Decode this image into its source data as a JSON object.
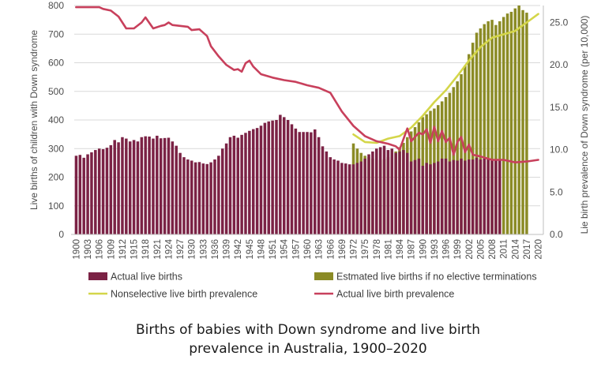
{
  "chart_data": {
    "type": "bar",
    "title": "Births of babies with Down syndrome and live birth prevalence in Australia, 1900–2020",
    "title_line1": "Births of babies with Down syndrome and live birth",
    "title_line2": "prevalence in Australia, 1900–2020",
    "ylabel_left": "Live births of children with Down syndrome",
    "ylabel_right": "Lie birth prevalence of Down syndrome (per 10,000)",
    "ylim_left": [
      0,
      800
    ],
    "ylim_right": [
      0,
      27
    ],
    "yticks_left": [
      "0",
      "100",
      "200",
      "300",
      "400",
      "500",
      "600",
      "700",
      "800"
    ],
    "yticks_right": [
      "0.0",
      "5.0",
      "10.0",
      "15.0",
      "20.0",
      "25.0"
    ],
    "xlim": [
      1900,
      2020
    ],
    "xticks": [
      "1900",
      "1903",
      "1906",
      "1909",
      "1912",
      "1915",
      "1918",
      "1921",
      "1924",
      "1927",
      "1930",
      "1933",
      "1936",
      "1939",
      "1942",
      "1945",
      "1948",
      "1951",
      "1954",
      "1957",
      "1960",
      "1963",
      "1966",
      "1969",
      "1972",
      "1975",
      "1978",
      "1981",
      "1984",
      "1987",
      "1990",
      "1993",
      "1996",
      "1999",
      "2002",
      "2005",
      "2008",
      "2011",
      "2014",
      "2017",
      "2020"
    ],
    "grid": "horizontal",
    "legend_position": "bottom",
    "colors": {
      "actual_births": "#7b2245",
      "estimated_births": "#8b8b26",
      "nonselective_prevalence": "#d4d64a",
      "actual_prevalence": "#c8405c",
      "grid": "#d9d9d9",
      "axis": "#bfbfbf"
    },
    "series": [
      {
        "name": "Actual live births",
        "kind": "bar",
        "axis": "left",
        "x_start": 1900,
        "values": [
          275,
          278,
          268,
          280,
          287,
          295,
          300,
          298,
          303,
          312,
          330,
          322,
          340,
          335,
          325,
          330,
          325,
          340,
          343,
          342,
          335,
          345,
          336,
          337,
          338,
          325,
          310,
          285,
          270,
          262,
          258,
          252,
          253,
          248,
          246,
          252,
          262,
          275,
          300,
          318,
          340,
          345,
          338,
          348,
          355,
          362,
          368,
          372,
          380,
          390,
          395,
          398,
          400,
          418,
          410,
          400,
          385,
          370,
          358,
          358,
          358,
          357,
          367,
          340,
          308,
          290,
          270,
          262,
          258,
          250,
          248,
          245,
          245,
          250,
          255,
          265,
          280,
          290,
          300,
          305,
          310,
          295,
          300,
          285,
          290,
          295,
          285,
          255,
          260,
          265,
          240,
          250,
          245,
          250,
          255,
          265,
          265,
          255,
          260,
          258,
          265,
          258,
          262,
          262,
          268,
          262,
          265,
          266,
          262,
          263,
          262
        ]
      },
      {
        "name": "Estmated live births if no elective terminations",
        "kind": "bar",
        "axis": "left",
        "x_start": 1972,
        "values": [
          318,
          300,
          285,
          275,
          270,
          265,
          262,
          260,
          263,
          270,
          278,
          290,
          305,
          320,
          340,
          360,
          375,
          392,
          410,
          420,
          432,
          440,
          452,
          465,
          480,
          495,
          515,
          535,
          560,
          590,
          630,
          670,
          705,
          720,
          735,
          745,
          750,
          732,
          745,
          760,
          772,
          778,
          790,
          800,
          784,
          775
        ]
      },
      {
        "name": "Nonselective live birth prevalence",
        "kind": "line",
        "axis": "right",
        "points": [
          [
            1972,
            11.8
          ],
          [
            1975,
            10.9
          ],
          [
            1978,
            10.8
          ],
          [
            1981,
            11.3
          ],
          [
            1984,
            11.6
          ],
          [
            1987,
            12.6
          ],
          [
            1990,
            14.0
          ],
          [
            1993,
            15.6
          ],
          [
            1996,
            17.0
          ],
          [
            1999,
            18.7
          ],
          [
            2002,
            20.5
          ],
          [
            2005,
            22.1
          ],
          [
            2008,
            23.2
          ],
          [
            2011,
            23.6
          ],
          [
            2014,
            24.0
          ],
          [
            2017,
            25.0
          ],
          [
            2020,
            26.0
          ]
        ]
      },
      {
        "name": "Actual live birth prevalence",
        "kind": "line",
        "axis": "right",
        "points": [
          [
            1900,
            26.8
          ],
          [
            1903,
            26.8
          ],
          [
            1906,
            26.8
          ],
          [
            1907,
            26.6
          ],
          [
            1909,
            26.4
          ],
          [
            1911,
            25.7
          ],
          [
            1913,
            24.3
          ],
          [
            1915,
            24.3
          ],
          [
            1917,
            25.0
          ],
          [
            1918,
            25.6
          ],
          [
            1920,
            24.3
          ],
          [
            1922,
            24.6
          ],
          [
            1923,
            24.7
          ],
          [
            1924,
            25.0
          ],
          [
            1925,
            24.7
          ],
          [
            1927,
            24.6
          ],
          [
            1929,
            24.5
          ],
          [
            1930,
            24.1
          ],
          [
            1932,
            24.2
          ],
          [
            1934,
            23.4
          ],
          [
            1935,
            22.2
          ],
          [
            1937,
            21.0
          ],
          [
            1939,
            20.0
          ],
          [
            1941,
            19.4
          ],
          [
            1942,
            19.5
          ],
          [
            1943,
            19.2
          ],
          [
            1944,
            20.2
          ],
          [
            1945,
            20.5
          ],
          [
            1946,
            19.8
          ],
          [
            1948,
            18.9
          ],
          [
            1951,
            18.5
          ],
          [
            1954,
            18.2
          ],
          [
            1957,
            18.0
          ],
          [
            1960,
            17.6
          ],
          [
            1963,
            17.3
          ],
          [
            1966,
            16.7
          ],
          [
            1969,
            14.5
          ],
          [
            1972,
            12.8
          ],
          [
            1975,
            11.6
          ],
          [
            1978,
            11.0
          ],
          [
            1981,
            10.7
          ],
          [
            1983,
            10.4
          ],
          [
            1984,
            10.0
          ],
          [
            1986,
            12.5
          ],
          [
            1987,
            11.0
          ],
          [
            1989,
            12.0
          ],
          [
            1990,
            11.8
          ],
          [
            1991,
            12.4
          ],
          [
            1992,
            10.8
          ],
          [
            1993,
            12.7
          ],
          [
            1994,
            11.0
          ],
          [
            1995,
            12.2
          ],
          [
            1996,
            10.9
          ],
          [
            1997,
            11.4
          ],
          [
            1998,
            9.4
          ],
          [
            1999,
            10.9
          ],
          [
            2000,
            11.5
          ],
          [
            2001,
            9.7
          ],
          [
            2002,
            10.6
          ],
          [
            2003,
            9.4
          ],
          [
            2005,
            9.2
          ],
          [
            2008,
            8.8
          ],
          [
            2011,
            8.8
          ],
          [
            2014,
            8.5
          ],
          [
            2017,
            8.6
          ],
          [
            2020,
            8.8
          ]
        ]
      }
    ]
  }
}
